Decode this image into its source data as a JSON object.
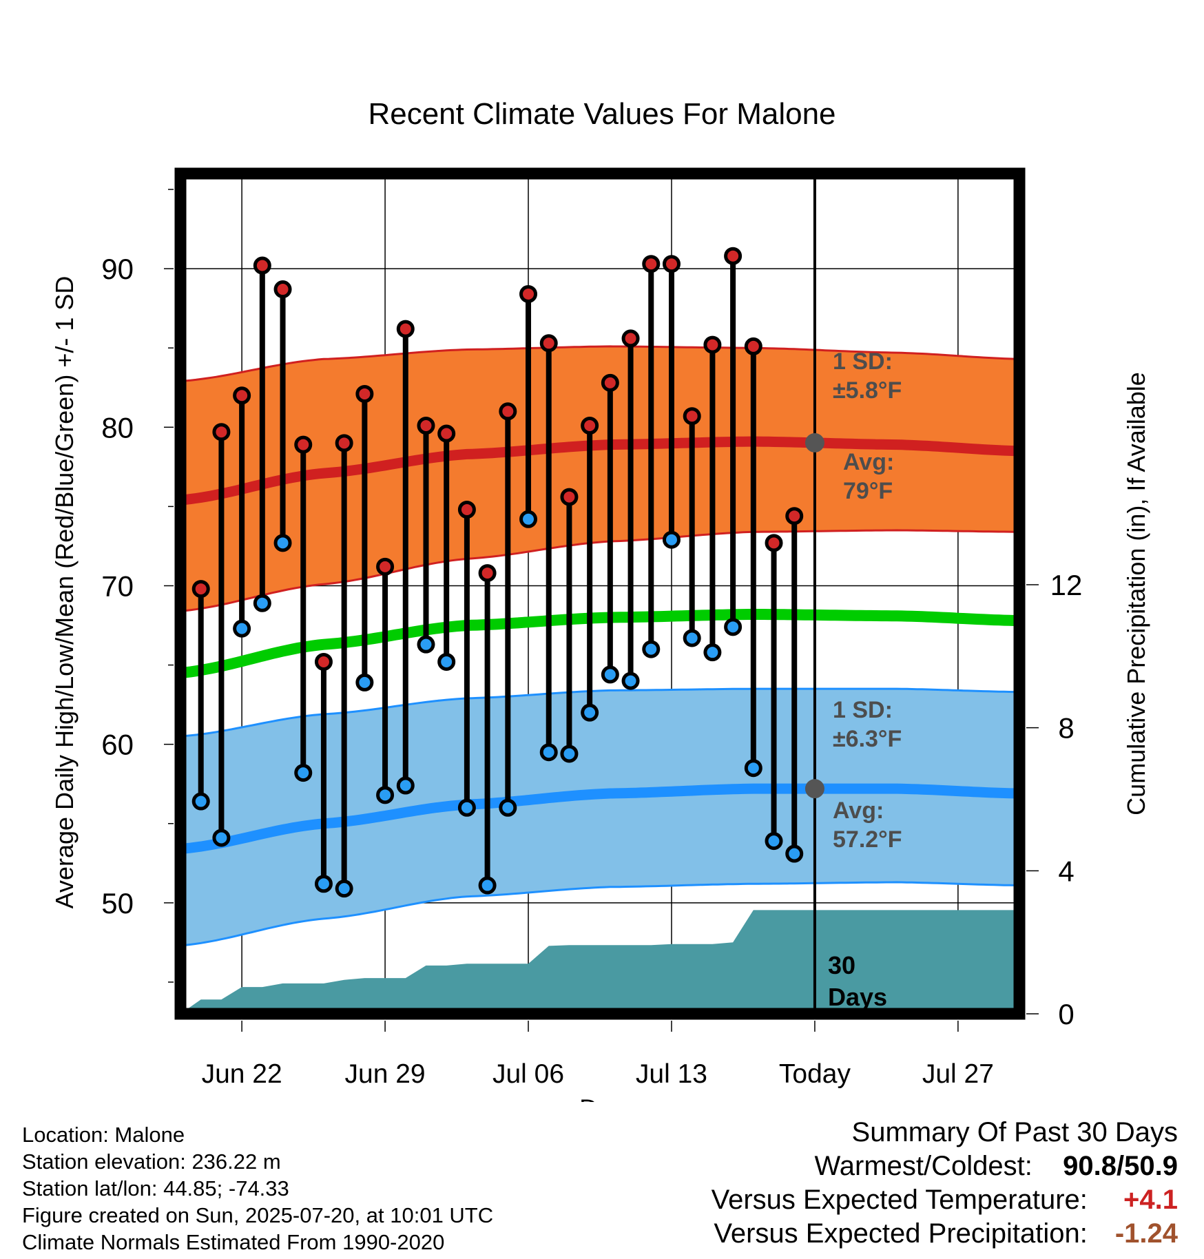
{
  "chart_data": {
    "type": "line",
    "title": "Recent Climate Values For Malone",
    "xlabel": "Day",
    "ylabel": "Average Daily High/Low/Mean (Red/Blue/Green) +/- 1 SD",
    "y2label": "Cumulative Precipitation (in), If Available",
    "x_tick_labels": [
      "Jun 22",
      "Jun 29",
      "Jul 06",
      "Jul 13",
      "Today",
      "Jul 27"
    ],
    "x_tick_dates": [
      "2025-06-22",
      "2025-06-29",
      "2025-07-06",
      "2025-07-13",
      "2025-07-20",
      "2025-07-27"
    ],
    "x_range": [
      "2025-06-19",
      "2025-07-30"
    ],
    "ylim": [
      43,
      96
    ],
    "y_ticks": [
      50,
      60,
      70,
      80,
      90
    ],
    "y2lim": [
      0,
      23.5
    ],
    "y2_ticks": [
      0,
      4,
      8,
      12
    ],
    "grid": true,
    "today": "2025-07-20",
    "observed": {
      "dates": [
        "2025-06-20",
        "2025-06-21",
        "2025-06-22",
        "2025-06-23",
        "2025-06-24",
        "2025-06-25",
        "2025-06-26",
        "2025-06-27",
        "2025-06-28",
        "2025-06-29",
        "2025-06-30",
        "2025-07-01",
        "2025-07-02",
        "2025-07-03",
        "2025-07-04",
        "2025-07-05",
        "2025-07-06",
        "2025-07-07",
        "2025-07-08",
        "2025-07-09",
        "2025-07-10",
        "2025-07-11",
        "2025-07-12",
        "2025-07-13",
        "2025-07-14",
        "2025-07-15",
        "2025-07-16",
        "2025-07-17",
        "2025-07-18",
        "2025-07-19"
      ],
      "high": [
        69.8,
        79.7,
        82.0,
        90.2,
        88.7,
        78.9,
        65.2,
        79.0,
        82.1,
        71.2,
        86.2,
        80.1,
        79.6,
        74.8,
        70.8,
        81.0,
        88.4,
        85.3,
        75.6,
        80.1,
        82.8,
        85.6,
        90.3,
        90.3,
        80.7,
        85.2,
        90.8,
        85.1,
        72.7,
        74.4
      ],
      "low": [
        56.4,
        54.1,
        67.3,
        68.9,
        72.7,
        58.2,
        51.2,
        50.9,
        63.9,
        56.8,
        57.4,
        66.3,
        65.2,
        56.0,
        51.1,
        56.0,
        74.2,
        59.5,
        59.4,
        62.0,
        64.4,
        64.0,
        66.0,
        72.9,
        66.7,
        65.8,
        67.4,
        58.5,
        53.9,
        53.1
      ]
    },
    "normals": {
      "dates": [
        "2025-06-19",
        "2025-06-26",
        "2025-07-03",
        "2025-07-10",
        "2025-07-17",
        "2025-07-24",
        "2025-07-30"
      ],
      "high_avg": [
        75.4,
        77.1,
        78.3,
        78.9,
        79.1,
        78.9,
        78.5
      ],
      "high_upper": [
        82.9,
        84.3,
        84.9,
        85.1,
        85.0,
        84.7,
        84.3
      ],
      "high_lower": [
        68.4,
        70.1,
        71.7,
        72.8,
        73.4,
        73.5,
        73.4
      ],
      "mean_avg": [
        64.5,
        66.3,
        67.5,
        68.0,
        68.2,
        68.1,
        67.8
      ],
      "low_avg": [
        53.4,
        55.0,
        56.2,
        56.9,
        57.2,
        57.2,
        56.9
      ],
      "low_upper": [
        60.5,
        61.9,
        62.9,
        63.4,
        63.5,
        63.5,
        63.3
      ],
      "low_lower": [
        47.3,
        49.0,
        50.4,
        51.0,
        51.2,
        51.3,
        51.1
      ]
    },
    "precip_cumulative": {
      "dates": [
        "2025-06-19",
        "2025-06-20",
        "2025-06-21",
        "2025-06-22",
        "2025-06-23",
        "2025-06-24",
        "2025-06-25",
        "2025-06-26",
        "2025-06-27",
        "2025-06-28",
        "2025-06-29",
        "2025-06-30",
        "2025-07-01",
        "2025-07-02",
        "2025-07-03",
        "2025-07-04",
        "2025-07-05",
        "2025-07-06",
        "2025-07-07",
        "2025-07-08",
        "2025-07-09",
        "2025-07-10",
        "2025-07-11",
        "2025-07-12",
        "2025-07-13",
        "2025-07-14",
        "2025-07-15",
        "2025-07-16",
        "2025-07-17",
        "2025-07-18",
        "2025-07-19",
        "2025-07-20",
        "2025-07-30"
      ],
      "values": [
        0,
        0.4,
        0.4,
        0.75,
        0.75,
        0.85,
        0.85,
        0.85,
        0.95,
        1.0,
        1.0,
        1.0,
        1.35,
        1.35,
        1.4,
        1.4,
        1.4,
        1.4,
        1.9,
        1.92,
        1.92,
        1.92,
        1.92,
        1.92,
        1.95,
        1.95,
        1.95,
        2.0,
        2.9,
        2.9,
        2.9,
        2.9,
        2.9
      ]
    },
    "annotations": {
      "high_sd_label": "1 SD:",
      "high_sd_value": "±5.8°F",
      "high_avg_label": "Avg:",
      "high_avg_value": "79°F",
      "low_sd_label": "1 SD:",
      "low_sd_value": "±6.3°F",
      "low_avg_label": "Avg:",
      "low_avg_value": "57.2°F",
      "days_label_1": "30",
      "days_label_2": "Days"
    },
    "colors": {
      "high_band": "#f47b2e",
      "high_line": "#d02020",
      "mean_line": "#00cc00",
      "low_band": "#82c0e8",
      "low_line": "#1e90ff",
      "precip": "#4a9aa2",
      "high_dot": "#d22828",
      "low_dot": "#2a9df4",
      "annotation_text": "#4d4d4d"
    }
  },
  "info": {
    "location": "Location: Malone",
    "elevation": "Station elevation: 236.22 m",
    "latlon": "Station lat/lon: 44.85; -74.33",
    "created": "Figure created on Sun, 2025-07-20, at 10:01 UTC",
    "normals": "Climate Normals Estimated From 1990-2020"
  },
  "summary": {
    "title": "Summary Of Past 30 Days",
    "warmest_label": "Warmest/Coldest:",
    "warmest_value": "90.8/50.9",
    "temp_label": "Versus Expected Temperature:",
    "temp_value": "+4.1",
    "temp_color": "#cc2222",
    "precip_label": "Versus Expected Precipitation:",
    "precip_value": "-1.24",
    "precip_color": "#a0522d"
  }
}
